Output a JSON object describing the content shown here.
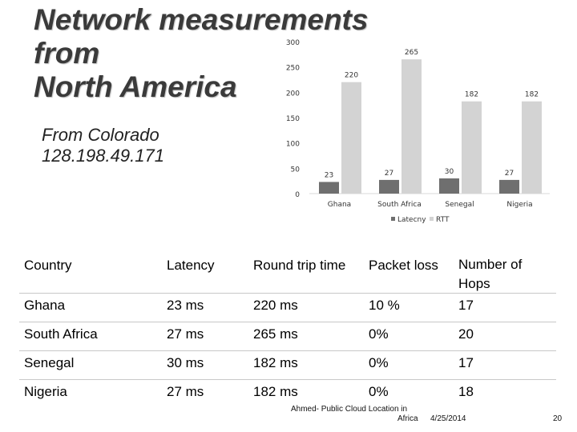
{
  "title": {
    "line1": "Network measurements",
    "line2": "from",
    "line3": "North America"
  },
  "subtitle": {
    "line1": "From Colorado",
    "line2": "128.198.49.171"
  },
  "chart_data": {
    "type": "bar",
    "categories": [
      "Ghana",
      "South Africa",
      "Senegal",
      "Nigeria"
    ],
    "series": [
      {
        "name": "Latecny",
        "values": [
          23,
          27,
          30,
          27
        ],
        "color": "#6f6f6f"
      },
      {
        "name": "RTT",
        "values": [
          220,
          265,
          182,
          182
        ],
        "color": "#d3d3d3"
      }
    ],
    "ylim": [
      0,
      300
    ],
    "yticks": [
      "0",
      "50",
      "100",
      "150",
      "200",
      "250",
      "300"
    ],
    "legend": "bottom",
    "grid": false
  },
  "table": {
    "headers": [
      "Country",
      "Latency",
      "Round trip time",
      "Packet loss",
      "Number of Hops"
    ],
    "rows": [
      [
        "Ghana",
        "23 ms",
        "220 ms",
        "10 %",
        "17"
      ],
      [
        "South Africa",
        "27 ms",
        "265 ms",
        "0%",
        "20"
      ],
      [
        "Senegal",
        "30 ms",
        "182 ms",
        "0%",
        "17"
      ],
      [
        "Nigeria",
        "27 ms",
        "182 ms",
        "0%",
        "18"
      ]
    ]
  },
  "footer": {
    "source_line1": "Ahmed- Public Cloud Location in",
    "source_line2": "Africa",
    "date": "4/25/2014",
    "page": "20"
  }
}
